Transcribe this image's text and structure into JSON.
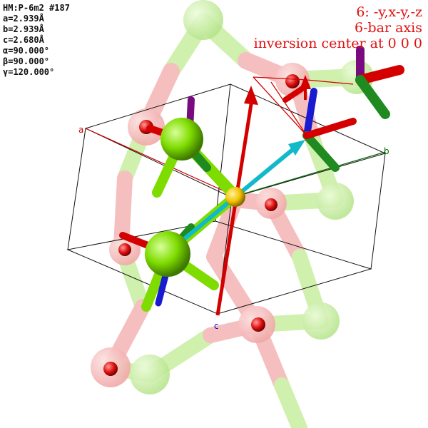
{
  "cell_info": {
    "hm": "HM:P-6m2 #187",
    "a": "a=2.939Å",
    "b": "b=2.939Å",
    "c": "c=2.680Å",
    "alpha": "α=90.000°",
    "beta": "β=90.000°",
    "gamma": "γ=120.000°"
  },
  "operation": {
    "symop": "6: -y,x-y,-z",
    "axis": "6-bar axis",
    "inversion": "inversion center at 0 0 0"
  },
  "axes": {
    "a_label": "a",
    "b_label": "b",
    "c_label": "c",
    "a_color": "#cc0000",
    "b_color": "#006600",
    "c_color": "#0000cc"
  },
  "colors": {
    "atom_green": "#7fdc00",
    "atom_red": "#e01010",
    "bond_pink": "#f4a8a8",
    "bond_lightgreen": "#c8eea0",
    "arrow_red": "#d40000",
    "arrow_cyan": "#11b9c9",
    "center_yellow": "#f2c200",
    "arrow_blue": "#1a1ad0",
    "arrow_purple": "#7a0a80",
    "arrow_darkgreen": "#1f8a1f"
  }
}
